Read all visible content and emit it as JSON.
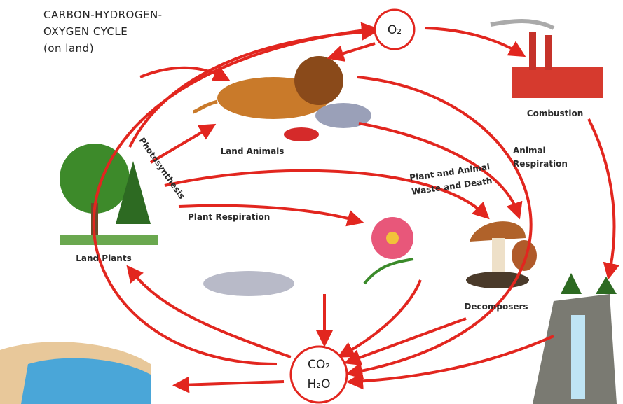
{
  "title": {
    "line1": "CARBON-HYDROGEN-",
    "line2": "OXYGEN CYCLE",
    "line3": "(on land)"
  },
  "nodes": {
    "oxygen": {
      "label": "O₂"
    },
    "co2": {
      "label": "CO₂"
    },
    "water": {
      "label": "H₂O"
    },
    "land_animals": {
      "label": "Land Animals"
    },
    "combustion": {
      "label": "Combustion"
    },
    "land_plants": {
      "label": "Land Plants"
    },
    "decomposers": {
      "label": "Decomposers"
    }
  },
  "processes": {
    "photosynthesis": {
      "label": "Photosynthesis"
    },
    "plant_respiration": {
      "label": "Plant Respiration"
    },
    "animal_respiration": {
      "line1": "Animal",
      "line2": "Respiration"
    },
    "waste_and_death": {
      "line1": "Plant and Animal",
      "line2": "Waste and Death"
    }
  }
}
